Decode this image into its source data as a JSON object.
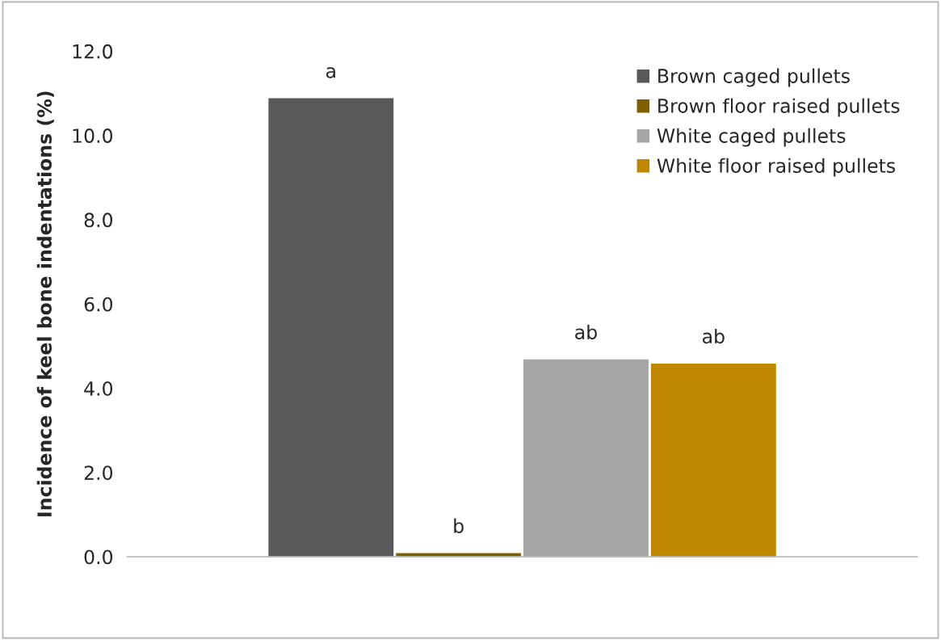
{
  "chart_data": {
    "type": "bar",
    "ylabel": "Incidence of keel bone indentations (%)",
    "categories": [
      null
    ],
    "series": [
      {
        "name": "Brown caged pullets",
        "color": "#595959",
        "values": [
          10.9
        ]
      },
      {
        "name": "Brown floor raised pullets",
        "color": "#7f6000",
        "values": [
          0.1
        ]
      },
      {
        "name": "White caged pullets",
        "color": "#a6a6a6",
        "values": [
          4.7
        ]
      },
      {
        "name": "White floor raised pullets",
        "color": "#bf8700",
        "values": [
          4.6
        ]
      }
    ],
    "annotations": [
      "a",
      "b",
      "ab",
      "ab"
    ],
    "ylim": [
      0,
      12
    ],
    "yticks": [
      {
        "value": 0,
        "label": "0.0"
      },
      {
        "value": 2,
        "label": "2.0"
      },
      {
        "value": 4,
        "label": "4.0"
      },
      {
        "value": 6,
        "label": "6.0"
      },
      {
        "value": 8,
        "label": "8.0"
      },
      {
        "value": 10,
        "label": "10.0"
      },
      {
        "value": 12,
        "label": "12.0"
      }
    ],
    "grid": false,
    "legend": "top right"
  }
}
